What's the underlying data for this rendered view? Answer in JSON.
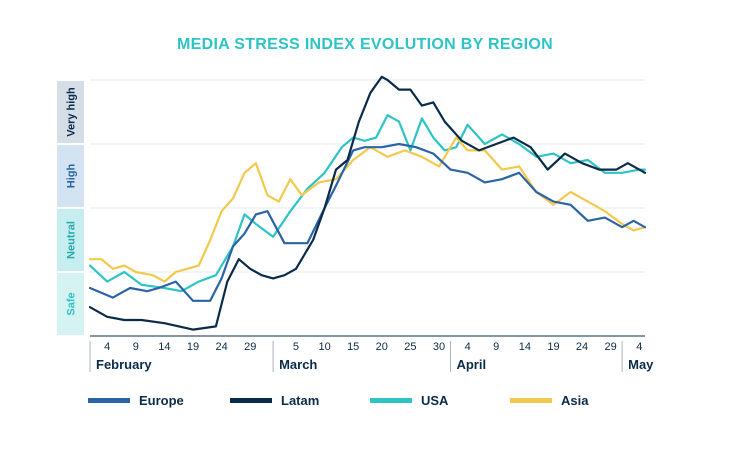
{
  "chart_data": {
    "type": "line",
    "title": "MEDIA STRESS INDEX EVOLUTION  BY REGION",
    "xlabel": "",
    "ylabel": "",
    "y_bands": [
      {
        "label": "Safe",
        "color": "#d6f3f4",
        "text_color": "#2ec4c6"
      },
      {
        "label": "Neutral",
        "color": "#c6eef0",
        "text_color": "#2aa8ab"
      },
      {
        "label": "High",
        "color": "#d3e3f1",
        "text_color": "#2866a3"
      },
      {
        "label": "Very high",
        "color": "#d5dde6",
        "text_color": "#0b2b4a"
      }
    ],
    "ylim": [
      0,
      4
    ],
    "grid": true,
    "months": [
      {
        "label": "February",
        "start_day": 1
      },
      {
        "label": "March",
        "start_day": 33
      },
      {
        "label": "April",
        "start_day": 64
      },
      {
        "label": "May",
        "start_day": 94
      }
    ],
    "x_ticks": [
      {
        "day": 4,
        "label": "4"
      },
      {
        "day": 9,
        "label": "9"
      },
      {
        "day": 14,
        "label": "14"
      },
      {
        "day": 19,
        "label": "19"
      },
      {
        "day": 24,
        "label": "24"
      },
      {
        "day": 29,
        "label": "29"
      },
      {
        "day": 37,
        "label": "5"
      },
      {
        "day": 42,
        "label": "10"
      },
      {
        "day": 47,
        "label": "15"
      },
      {
        "day": 52,
        "label": "20"
      },
      {
        "day": 57,
        "label": "25"
      },
      {
        "day": 62,
        "label": "30"
      },
      {
        "day": 67,
        "label": "4"
      },
      {
        "day": 72,
        "label": "9"
      },
      {
        "day": 77,
        "label": "14"
      },
      {
        "day": 82,
        "label": "19"
      },
      {
        "day": 87,
        "label": "24"
      },
      {
        "day": 92,
        "label": "29"
      },
      {
        "day": 97,
        "label": "4"
      }
    ],
    "xlim": [
      1,
      98
    ],
    "legend_position": "bottom",
    "series": [
      {
        "name": "Europe",
        "color": "#2a64a6",
        "x": [
          1,
          5,
          8,
          11,
          13,
          16,
          19,
          22,
          24,
          26,
          28,
          30,
          32,
          35,
          39,
          42,
          44,
          47,
          49,
          52,
          55,
          58,
          61,
          64,
          67,
          70,
          73,
          76,
          79,
          82,
          85,
          88,
          91,
          94,
          96,
          98
        ],
        "y": [
          0.75,
          0.6,
          0.75,
          0.7,
          0.75,
          0.85,
          0.55,
          0.55,
          0.9,
          1.4,
          1.6,
          1.9,
          1.95,
          1.45,
          1.45,
          2.0,
          2.35,
          2.9,
          2.95,
          2.95,
          3.0,
          2.95,
          2.85,
          2.6,
          2.55,
          2.4,
          2.45,
          2.55,
          2.25,
          2.1,
          2.05,
          1.8,
          1.85,
          1.7,
          1.8,
          1.7
        ]
      },
      {
        "name": "Latam",
        "color": "#0b2b4a",
        "x": [
          1,
          4,
          7,
          10,
          14,
          19,
          23,
          25,
          27,
          29,
          31,
          33,
          35,
          37,
          40,
          42,
          44,
          46,
          48,
          50,
          52,
          53,
          55,
          57,
          59,
          61,
          63,
          66,
          69,
          72,
          75,
          78,
          81,
          84,
          87,
          90,
          93,
          95,
          97,
          98
        ],
        "y": [
          0.45,
          0.3,
          0.25,
          0.25,
          0.2,
          0.1,
          0.15,
          0.85,
          1.2,
          1.05,
          0.95,
          0.9,
          0.95,
          1.05,
          1.5,
          2.0,
          2.6,
          2.75,
          3.35,
          3.8,
          4.05,
          4.0,
          3.85,
          3.85,
          3.6,
          3.65,
          3.35,
          3.05,
          2.9,
          3.0,
          3.1,
          2.95,
          2.6,
          2.85,
          2.7,
          2.6,
          2.6,
          2.7,
          2.6,
          2.55
        ]
      },
      {
        "name": "USA",
        "color": "#2ec4c6",
        "x": [
          1,
          4,
          7,
          10,
          14,
          17,
          20,
          23,
          26,
          28,
          30,
          33,
          36,
          39,
          42,
          45,
          47,
          49,
          51,
          53,
          55,
          57,
          59,
          61,
          63,
          65,
          67,
          70,
          73,
          76,
          79,
          82,
          85,
          88,
          91,
          94,
          97,
          98
        ],
        "y": [
          1.1,
          0.85,
          1.0,
          0.8,
          0.75,
          0.7,
          0.85,
          0.95,
          1.4,
          1.9,
          1.75,
          1.55,
          1.95,
          2.3,
          2.55,
          2.95,
          3.1,
          3.05,
          3.1,
          3.45,
          3.35,
          2.9,
          3.4,
          3.1,
          2.9,
          2.95,
          3.3,
          3.0,
          3.15,
          3.0,
          2.8,
          2.85,
          2.7,
          2.75,
          2.55,
          2.55,
          2.6,
          2.6
        ]
      },
      {
        "name": "Asia",
        "color": "#f2c94c",
        "x": [
          1,
          3,
          5,
          7,
          9,
          12,
          14,
          16,
          18,
          20,
          22,
          24,
          26,
          28,
          30,
          32,
          34,
          36,
          38,
          41,
          44,
          47,
          50,
          53,
          56,
          59,
          62,
          65,
          67,
          70,
          73,
          76,
          79,
          82,
          85,
          88,
          91,
          94,
          96,
          98
        ],
        "y": [
          1.2,
          1.2,
          1.05,
          1.1,
          1.0,
          0.95,
          0.85,
          1.0,
          1.05,
          1.1,
          1.5,
          1.95,
          2.15,
          2.55,
          2.7,
          2.2,
          2.1,
          2.45,
          2.2,
          2.4,
          2.45,
          2.75,
          2.95,
          2.8,
          2.9,
          2.8,
          2.65,
          3.1,
          2.9,
          2.9,
          2.6,
          2.65,
          2.25,
          2.05,
          2.25,
          2.1,
          1.95,
          1.75,
          1.65,
          1.7
        ]
      }
    ]
  }
}
